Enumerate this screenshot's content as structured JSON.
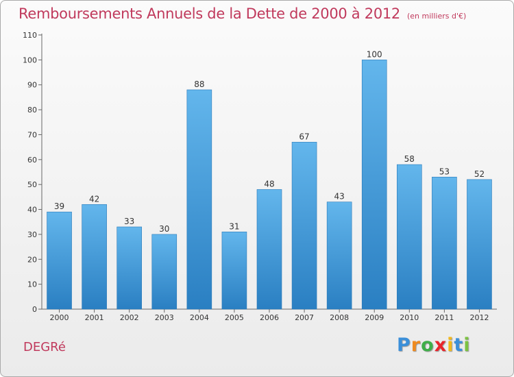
{
  "title": "Remboursements Annuels de la Dette de 2000 à 2012",
  "subtitle": "(en milliers d'€)",
  "commune": "DEGRé",
  "logo": {
    "letters": [
      "P",
      "r",
      "o",
      "x",
      "i",
      "t",
      "i"
    ],
    "colors": [
      "#3b8fd9",
      "#ef8a1f",
      "#3fae49",
      "#e8242b",
      "#f2b81c",
      "#3b8fd9",
      "#7cc242"
    ]
  },
  "colors": {
    "bar": "#4aa3e0",
    "bar_top": "#63b6ec",
    "bar_bottom": "#2d82c4",
    "title": "#c0395c",
    "text": "#333333"
  },
  "chart_data": {
    "type": "bar",
    "categories": [
      "2000",
      "2001",
      "2002",
      "2003",
      "2004",
      "2005",
      "2006",
      "2007",
      "2008",
      "2009",
      "2010",
      "2011",
      "2012"
    ],
    "values": [
      39,
      42,
      33,
      30,
      88,
      31,
      48,
      67,
      43,
      100,
      58,
      53,
      52
    ],
    "ylim": [
      0,
      110
    ],
    "yticks": [
      0,
      10,
      20,
      30,
      40,
      50,
      60,
      70,
      80,
      90,
      100,
      110
    ],
    "grid": false,
    "data_labels": true
  }
}
